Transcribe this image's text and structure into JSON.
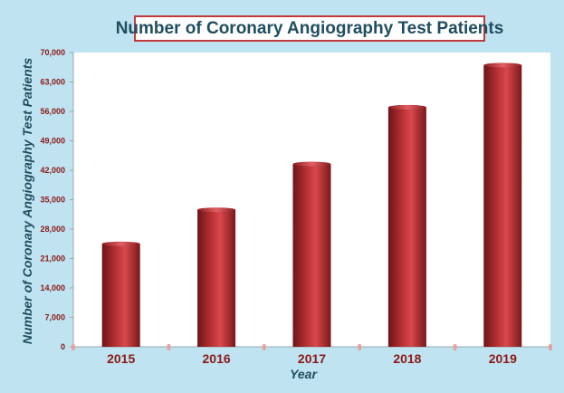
{
  "chart_data": {
    "type": "bar",
    "title": "Number of Coronary Angiography Test Patients",
    "xlabel": "Year",
    "ylabel": "Number of Coronary Angiography Test Patients",
    "categories": [
      "2015",
      "2016",
      "2017",
      "2018",
      "2019"
    ],
    "values": [
      24500,
      32600,
      43500,
      57000,
      67000
    ],
    "ylim": [
      0,
      70000
    ],
    "yticks": [
      0,
      7000,
      14000,
      21000,
      28000,
      35000,
      42000,
      49000,
      56000,
      63000,
      70000
    ],
    "ytick_labels": [
      "0",
      "7,000",
      "14,000",
      "21,000",
      "28,000",
      "35,000",
      "42,000",
      "49,000",
      "56,000",
      "63,000",
      "70,000"
    ],
    "grid": false,
    "bar_color": "#c0393b",
    "background_color": "#bfe3f0",
    "plot_color": "#ffffff"
  }
}
